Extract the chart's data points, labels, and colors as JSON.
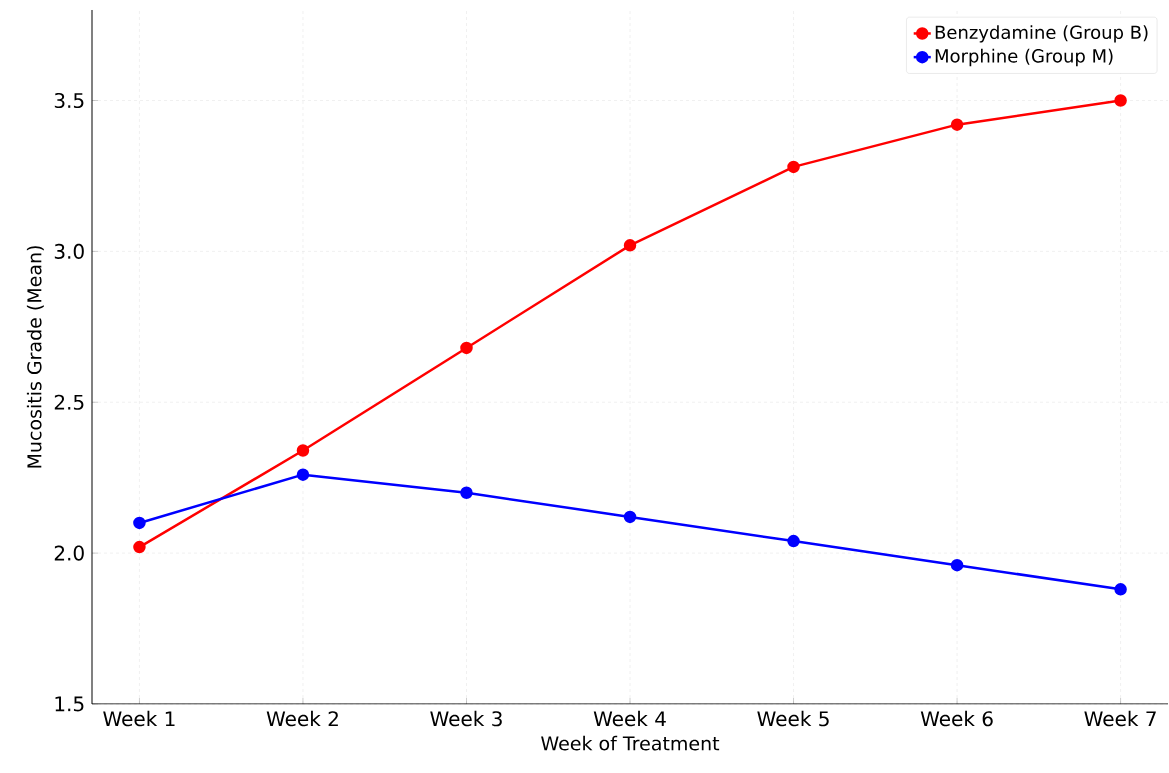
{
  "chart_data": {
    "type": "line",
    "xlabel": "Week of Treatment",
    "ylabel": "Mucositis Grade (Mean)",
    "categories": [
      "Week 1",
      "Week 2",
      "Week 3",
      "Week 4",
      "Week 5",
      "Week 6",
      "Week 7"
    ],
    "series": [
      {
        "name": "Benzydamine (Group B)",
        "color": "#ff0000",
        "values": [
          2.02,
          2.34,
          2.68,
          3.02,
          3.28,
          3.42,
          3.5
        ]
      },
      {
        "name": "Morphine (Group M)",
        "color": "#0000ff",
        "values": [
          2.1,
          2.26,
          2.2,
          2.12,
          2.04,
          1.96,
          1.88
        ]
      }
    ],
    "ylim": [
      1.5,
      3.8
    ],
    "yticks": [
      {
        "value": 1.5,
        "label": "1.5"
      },
      {
        "value": 2.0,
        "label": "2.0"
      },
      {
        "value": 2.5,
        "label": "2.5"
      },
      {
        "value": 3.0,
        "label": "3.0"
      },
      {
        "value": 3.5,
        "label": "3.5"
      }
    ],
    "grid": true,
    "legend": "top right",
    "marker": "circle",
    "line_style": "solid"
  }
}
